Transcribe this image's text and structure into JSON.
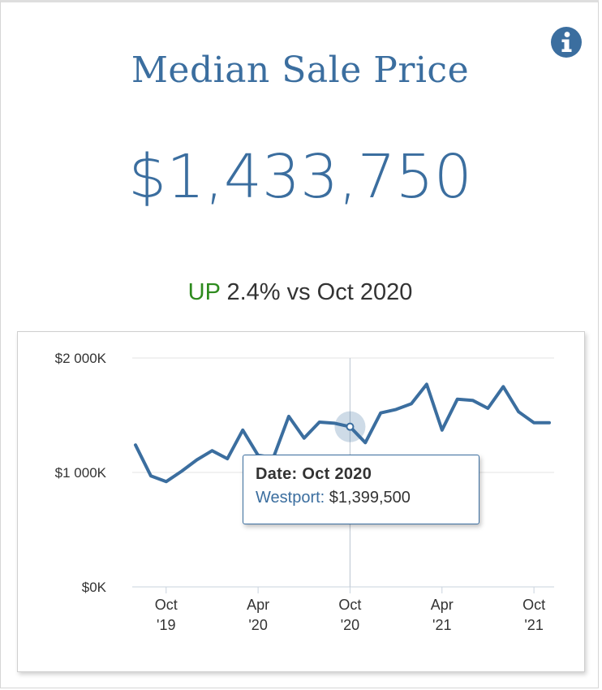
{
  "card": {
    "title": "Median Sale Price",
    "value": "$1,433,750",
    "change": {
      "direction": "UP",
      "text": "2.4% vs Oct 2020"
    },
    "info_icon": "info-icon"
  },
  "colors": {
    "primary": "#3b6e9f",
    "up": "#2e8b1e",
    "grid": "#e3e3e3",
    "text": "#333333"
  },
  "tooltip": {
    "date_label": "Date: Oct 2020",
    "series_label": "Westport:",
    "value": "$1,399,500"
  },
  "chart_data": {
    "type": "line",
    "title": "Median Sale Price",
    "xlabel": "",
    "ylabel": "",
    "x": [
      "2019-08",
      "2019-09",
      "2019-10",
      "2019-11",
      "2019-12",
      "2020-01",
      "2020-02",
      "2020-03",
      "2020-04",
      "2020-05",
      "2020-06",
      "2020-07",
      "2020-08",
      "2020-09",
      "2020-10",
      "2020-11",
      "2020-12",
      "2021-01",
      "2021-02",
      "2021-03",
      "2021-04",
      "2021-05",
      "2021-06",
      "2021-07",
      "2021-08",
      "2021-09",
      "2021-10",
      "2021-11"
    ],
    "series": [
      {
        "name": "Westport",
        "values": [
          1240000,
          970000,
          920000,
          1010000,
          1110000,
          1190000,
          1120000,
          1370000,
          1150000,
          1130000,
          1490000,
          1300000,
          1440000,
          1430000,
          1399500,
          1260000,
          1520000,
          1550000,
          1600000,
          1770000,
          1370000,
          1640000,
          1630000,
          1560000,
          1750000,
          1530000,
          1433750,
          1433750
        ]
      }
    ],
    "yticks": [
      "$0K",
      "$1 000K",
      "$2 000K"
    ],
    "ylim": [
      0,
      2000000
    ],
    "xticks": [
      {
        "x": "2019-10",
        "line1": "Oct",
        "line2": "'19"
      },
      {
        "x": "2020-04",
        "line1": "Apr",
        "line2": "'20"
      },
      {
        "x": "2020-10",
        "line1": "Oct",
        "line2": "'20"
      },
      {
        "x": "2021-04",
        "line1": "Apr",
        "line2": "'21"
      },
      {
        "x": "2021-10",
        "line1": "Oct",
        "line2": "'21"
      }
    ],
    "highlighted": "2020-10",
    "grid": true,
    "legend": "none"
  }
}
